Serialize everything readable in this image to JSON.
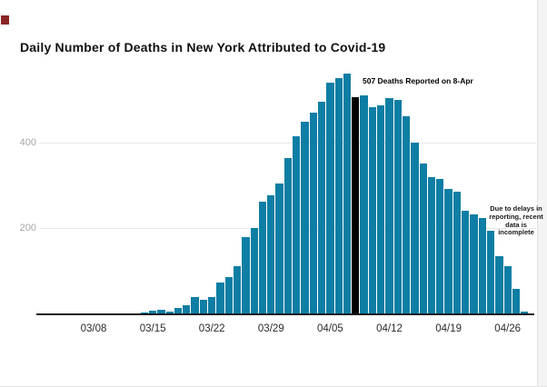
{
  "page": {
    "title": "Daily Number of Deaths in New York Attributed to Covid-19"
  },
  "annotations": {
    "peak_label": "507 Deaths Reported on 8-Apr",
    "delay_note_lines": [
      "Due to delays in",
      "reporting, recent",
      "data is incomplete"
    ]
  },
  "colors": {
    "bar": "#0e7ea4",
    "highlight_bar": "#000000",
    "gridline": "#e9e9e9",
    "axis_line": "#1a1a1a",
    "y_label": "#a6a6a6",
    "x_label": "#2b2b2b",
    "artifact_red": "#8b2525"
  },
  "chart_data": {
    "type": "bar",
    "title": "Daily Number of Deaths in New York Attributed to Covid-19",
    "xlabel": "",
    "ylabel": "",
    "ylim": [
      0,
      580
    ],
    "y_ticks": [
      200,
      400
    ],
    "grid": "horizontal",
    "x_tick_labels": [
      "03/08",
      "03/15",
      "03/22",
      "03/29",
      "04/05",
      "04/12",
      "04/19",
      "04/26"
    ],
    "highlight": {
      "date": "04/08",
      "value": 507,
      "label": "507 Deaths Reported on 8-Apr"
    },
    "note": "Due to delays in reporting, recent data is incomplete",
    "series": [
      {
        "date": "03/14",
        "value": 3
      },
      {
        "date": "03/15",
        "value": 6
      },
      {
        "date": "03/16",
        "value": 9
      },
      {
        "date": "03/17",
        "value": 4
      },
      {
        "date": "03/18",
        "value": 13
      },
      {
        "date": "03/19",
        "value": 19
      },
      {
        "date": "03/20",
        "value": 38
      },
      {
        "date": "03/21",
        "value": 32
      },
      {
        "date": "03/22",
        "value": 38
      },
      {
        "date": "03/23",
        "value": 72
      },
      {
        "date": "03/24",
        "value": 85
      },
      {
        "date": "03/25",
        "value": 111
      },
      {
        "date": "03/26",
        "value": 179
      },
      {
        "date": "03/27",
        "value": 201
      },
      {
        "date": "03/28",
        "value": 262
      },
      {
        "date": "03/29",
        "value": 276
      },
      {
        "date": "03/30",
        "value": 305
      },
      {
        "date": "03/31",
        "value": 364
      },
      {
        "date": "04/01",
        "value": 415
      },
      {
        "date": "04/02",
        "value": 448
      },
      {
        "date": "04/03",
        "value": 470
      },
      {
        "date": "04/04",
        "value": 495
      },
      {
        "date": "04/05",
        "value": 540
      },
      {
        "date": "04/06",
        "value": 552
      },
      {
        "date": "04/07",
        "value": 562
      },
      {
        "date": "04/08",
        "value": 507
      },
      {
        "date": "04/09",
        "value": 511
      },
      {
        "date": "04/10",
        "value": 484
      },
      {
        "date": "04/11",
        "value": 487
      },
      {
        "date": "04/12",
        "value": 504
      },
      {
        "date": "04/13",
        "value": 499
      },
      {
        "date": "04/14",
        "value": 462
      },
      {
        "date": "04/15",
        "value": 400
      },
      {
        "date": "04/16",
        "value": 351
      },
      {
        "date": "04/17",
        "value": 319
      },
      {
        "date": "04/18",
        "value": 314
      },
      {
        "date": "04/19",
        "value": 291
      },
      {
        "date": "04/20",
        "value": 286
      },
      {
        "date": "04/21",
        "value": 241
      },
      {
        "date": "04/22",
        "value": 232
      },
      {
        "date": "04/23",
        "value": 224
      },
      {
        "date": "04/24",
        "value": 193
      },
      {
        "date": "04/25",
        "value": 135
      },
      {
        "date": "04/26",
        "value": 110
      },
      {
        "date": "04/27",
        "value": 57
      },
      {
        "date": "04/28",
        "value": 5
      }
    ]
  }
}
